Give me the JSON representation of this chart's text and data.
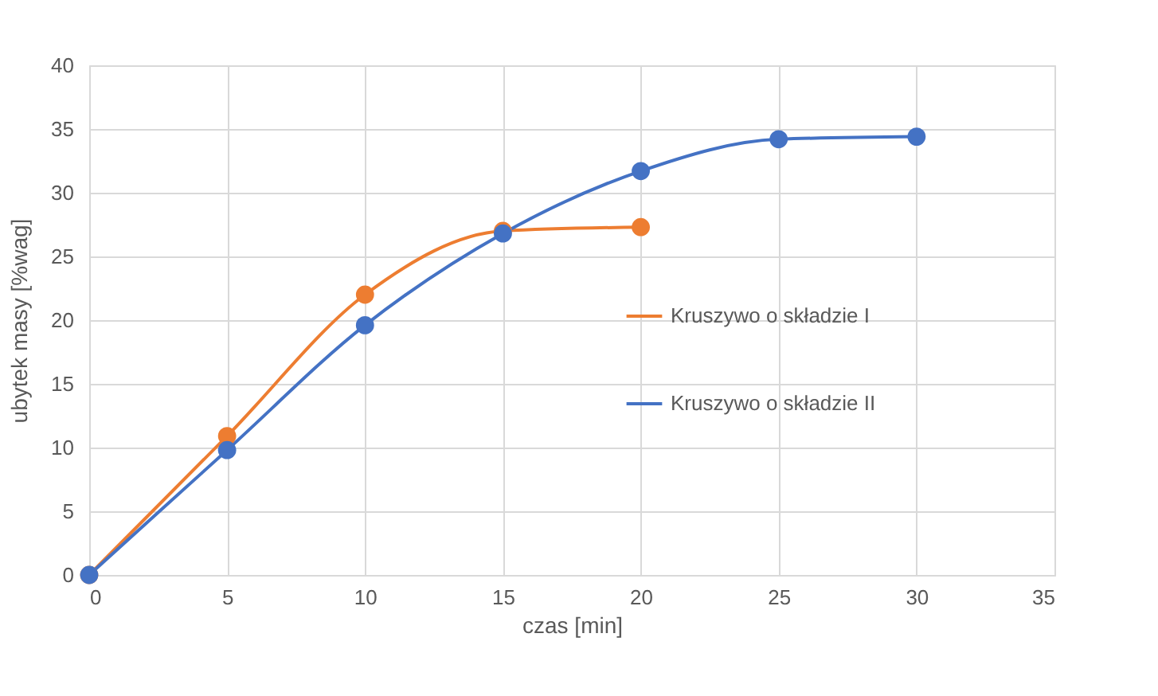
{
  "chart_data": {
    "type": "line",
    "xlabel": "czas [min]",
    "ylabel": "ubytek masy [%wag]",
    "xlim": [
      0,
      35
    ],
    "xticks": [
      0,
      5,
      10,
      15,
      20,
      25,
      30,
      35
    ],
    "ylim": [
      0,
      40
    ],
    "yticks": [
      0,
      5,
      10,
      15,
      20,
      25,
      30,
      35,
      40
    ],
    "grid": true,
    "legend": "right",
    "marker": "circle",
    "line_style": "solid",
    "series": [
      {
        "name": "Kruszywo o składzie I",
        "color": "#ed7d31",
        "x": [
          0,
          5,
          10,
          15,
          20
        ],
        "values": [
          0,
          10.9,
          22,
          27,
          27.3
        ]
      },
      {
        "name": "Kruszywo o składzie II",
        "color": "#4472c4",
        "x": [
          0,
          5,
          10,
          15,
          20,
          25,
          30
        ],
        "values": [
          0,
          9.8,
          19.6,
          26.8,
          31.7,
          34.2,
          34.4
        ]
      }
    ]
  }
}
